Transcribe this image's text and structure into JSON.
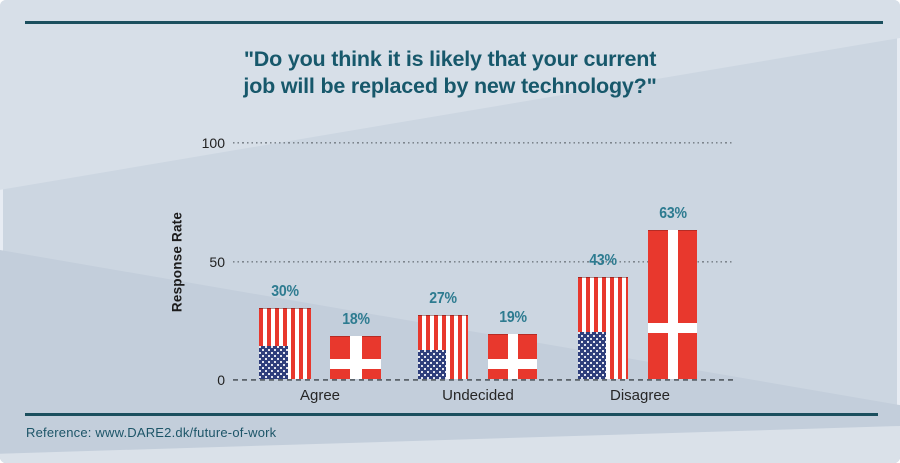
{
  "title": {
    "line1": "\"Do you think it is likely that your current",
    "line2": "job will be replaced by new technology?\""
  },
  "axis": {
    "ylabel": "Response Rate",
    "yticks": {
      "t100": "100",
      "t50": "50",
      "t0": "0"
    }
  },
  "reference": "Reference: www.DARE2.dk/future-of-work",
  "colors": {
    "background": "#ccd6e1",
    "title_teal": "#17586b",
    "rule_teal": "#1b4f5e",
    "value_label_teal": "#2d7b90",
    "flag_red": "#e8382d",
    "flag_navy": "#2f3f7c"
  },
  "chart_data": {
    "type": "bar",
    "title": "\"Do you think it is likely that your current job will be replaced by new technology?\"",
    "categories": [
      "Agree",
      "Undecided",
      "Disagree"
    ],
    "series": [
      {
        "name": "USA",
        "flag": "usa",
        "values": [
          30,
          27,
          43
        ],
        "labels": [
          "30%",
          "27%",
          "43%"
        ]
      },
      {
        "name": "Denmark",
        "flag": "dk",
        "values": [
          18,
          19,
          63
        ],
        "labels": [
          "18%",
          "19%",
          "63%"
        ]
      }
    ],
    "xlabel": "",
    "ylabel": "Response Rate",
    "ylim": [
      0,
      100
    ],
    "yticks": [
      0,
      50,
      100
    ],
    "grid": "dotted horizontal at 50 and 100, dashed baseline at 0",
    "legend": "none (flags encode series)"
  }
}
